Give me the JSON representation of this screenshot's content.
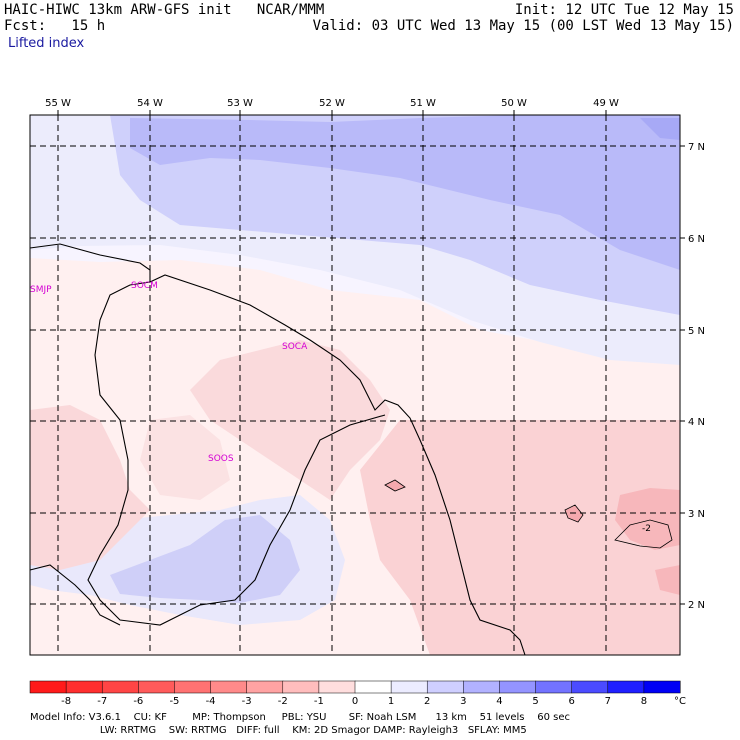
{
  "header": {
    "title": "HAIC-HIWC 13km ARW-GFS init   NCAR/MMM",
    "fcst_label": "Fcst:   15 h",
    "init": "Init: 12 UTC Tue 12 May 15",
    "valid": "Valid: 03 UTC Wed 13 May 15 (00 LST Wed 13 May 15)",
    "field": "Lifted index"
  },
  "map": {
    "lon_labels": [
      "55 W",
      "54 W",
      "53 W",
      "52 W",
      "51 W",
      "50 W",
      "49 W"
    ],
    "lat_labels": [
      "7 N",
      "6 N",
      "5 N",
      "4 N",
      "3 N",
      "2 N"
    ],
    "stations": [
      "SMJP",
      "SOCM",
      "SOCA",
      "SOOS"
    ],
    "contour_label": "-2"
  },
  "colorbar": {
    "ticks": [
      "-8",
      "-7",
      "-6",
      "-5",
      "-4",
      "-3",
      "-2",
      "-1",
      "0",
      "1",
      "2",
      "3",
      "4",
      "5",
      "6",
      "7",
      "8"
    ],
    "unit": "°C",
    "colors": [
      "#ff1a1a",
      "#ff2f2f",
      "#ff4545",
      "#ff5b5b",
      "#ff7272",
      "#ff8a8a",
      "#ffa3a3",
      "#ffbdbd",
      "#ffdede",
      "#ffffff",
      "#ececff",
      "#cfcfff",
      "#b2b2ff",
      "#9494ff",
      "#7373ff",
      "#4b4bff",
      "#1f1fff",
      "#0000f5"
    ]
  },
  "footer": {
    "line1": "Model Info: V3.6.1    CU: KF        MP: Thompson     PBL: YSU       SF: Noah LSM      13 km    51 levels    60 sec",
    "line2": "                      LW: RRTMG    SW: RRTMG   DIFF: full    KM: 2D Smagor DAMP: Rayleigh3   SFLAY: MM5"
  }
}
